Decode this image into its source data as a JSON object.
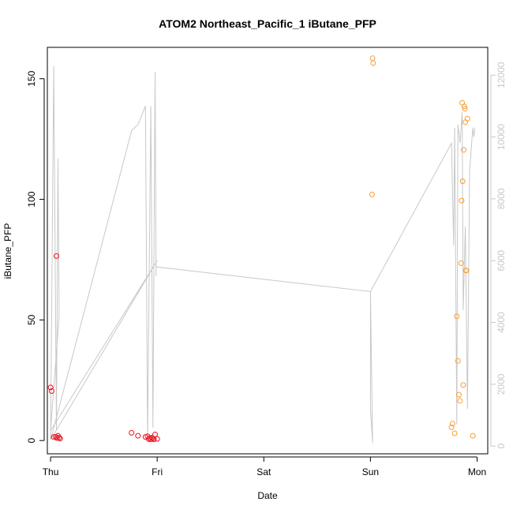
{
  "chart_data": {
    "type": "scatter",
    "title": "ATOM2 Northeast_Pacific_1 iButane_PFP",
    "xlabel": "Date",
    "ylabel": "iButane_PFP",
    "x_ticks": [
      "Thu",
      "Fri",
      "Sat",
      "Sun",
      "Mon"
    ],
    "xlim": [
      -0.03,
      4.1
    ],
    "y_ticks": [
      0,
      50,
      100,
      150
    ],
    "ylim": [
      -5.5,
      163
    ],
    "y2_ticks": [
      0,
      2000,
      4000,
      6000,
      8000,
      10000,
      12000
    ],
    "y2lim": [
      -250,
      12900
    ],
    "grid": false,
    "series": [
      {
        "color": "#e8141f",
        "marker": "open-circle",
        "points": [
          [
            0.0,
            22.0
          ],
          [
            0.01,
            20.5
          ],
          [
            0.03,
            1.5
          ],
          [
            0.05,
            1.5
          ],
          [
            0.055,
            76.5
          ],
          [
            0.06,
            1.0
          ],
          [
            0.07,
            2.0
          ],
          [
            0.08,
            1.2
          ],
          [
            0.09,
            0.8
          ],
          [
            0.76,
            3.2
          ],
          [
            0.82,
            2.0
          ],
          [
            0.89,
            1.5
          ],
          [
            0.91,
            1.8
          ],
          [
            0.92,
            0.6
          ],
          [
            0.93,
            1.0
          ],
          [
            0.94,
            0.5
          ],
          [
            0.95,
            1.2
          ],
          [
            0.96,
            0.8
          ],
          [
            0.97,
            0.5
          ],
          [
            0.98,
            2.5
          ],
          [
            1.0,
            0.7
          ]
        ]
      },
      {
        "color": "#f5a030",
        "marker": "open-circle",
        "points": [
          [
            3.02,
            158.5
          ],
          [
            3.025,
            156.5
          ],
          [
            3.015,
            102.0
          ],
          [
            3.76,
            5.5
          ],
          [
            3.77,
            7.0
          ],
          [
            3.79,
            3.0
          ],
          [
            3.81,
            51.5
          ],
          [
            3.82,
            33.0
          ],
          [
            3.83,
            19.0
          ],
          [
            3.84,
            16.5
          ],
          [
            3.85,
            73.5
          ],
          [
            3.855,
            99.5
          ],
          [
            3.86,
            140.0
          ],
          [
            3.865,
            107.5
          ],
          [
            3.87,
            23.0
          ],
          [
            3.875,
            120.5
          ],
          [
            3.88,
            138.5
          ],
          [
            3.885,
            137.5
          ],
          [
            3.89,
            132.0
          ],
          [
            3.895,
            70.5
          ],
          [
            3.9,
            70.5
          ],
          [
            3.91,
            133.5
          ],
          [
            3.96,
            2.0
          ]
        ]
      }
    ],
    "secondary_line": {
      "color": "#c8c8c8",
      "points": [
        [
          0.0,
          200
        ],
        [
          0.03,
          12300
        ],
        [
          0.055,
          500
        ],
        [
          0.07,
          9300
        ],
        [
          0.08,
          4200
        ],
        [
          0.0,
          500
        ],
        [
          1.0,
          6000
        ],
        [
          0.0,
          200
        ],
        [
          0.76,
          10200
        ],
        [
          0.82,
          10400
        ],
        [
          0.89,
          11000
        ],
        [
          0.91,
          200
        ],
        [
          0.94,
          11000
        ],
        [
          0.96,
          600
        ],
        [
          0.98,
          12100
        ],
        [
          0.99,
          5500
        ],
        [
          0.99,
          5800
        ],
        [
          3.0,
          5000
        ],
        [
          3.0,
          1200
        ],
        [
          3.02,
          100
        ],
        [
          3.0,
          5000
        ],
        [
          3.76,
          9800
        ],
        [
          3.78,
          6500
        ],
        [
          3.79,
          10300
        ],
        [
          3.81,
          700
        ],
        [
          3.82,
          10400
        ],
        [
          3.84,
          9800
        ],
        [
          3.86,
          10800
        ],
        [
          3.87,
          4400
        ],
        [
          3.89,
          7100
        ],
        [
          3.91,
          1200
        ],
        [
          3.93,
          8900
        ],
        [
          3.96,
          10300
        ],
        [
          3.97,
          10000
        ],
        [
          3.98,
          10300
        ]
      ]
    }
  }
}
